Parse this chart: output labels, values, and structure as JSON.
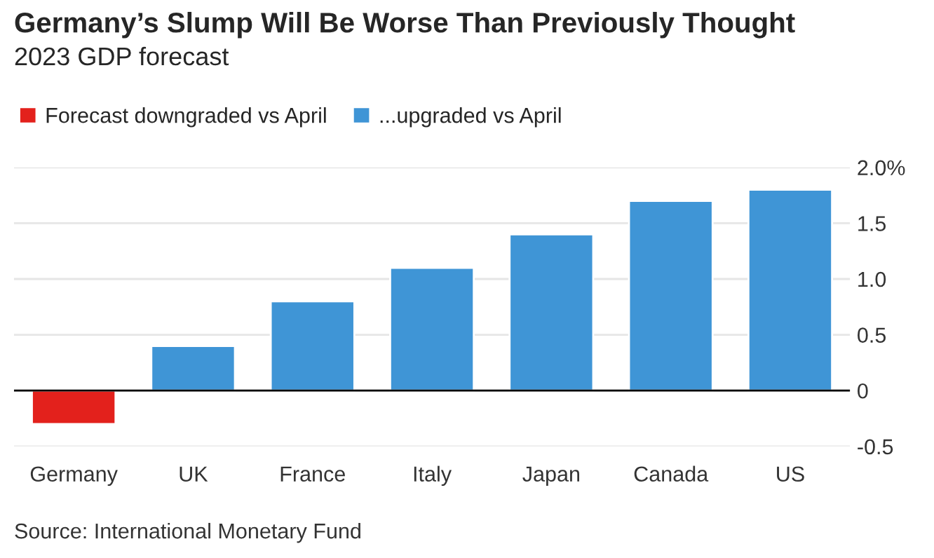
{
  "chart_data": {
    "type": "bar",
    "title": "Germany’s Slump Will Be Worse Than Previously Thought",
    "subtitle": "2023 GDP forecast",
    "categories": [
      "Germany",
      "UK",
      "France",
      "Italy",
      "Japan",
      "Canada",
      "US"
    ],
    "series": [
      {
        "name": "Forecast downgraded vs April",
        "color": "#e3211c",
        "values": [
          -0.3,
          null,
          null,
          null,
          null,
          null,
          null
        ]
      },
      {
        "name": "...upgraded vs April",
        "color": "#3f95d6",
        "values": [
          null,
          0.4,
          0.8,
          1.1,
          1.4,
          1.7,
          1.8
        ]
      }
    ],
    "ylim": [
      -0.5,
      2
    ],
    "yticks": [
      -0.5,
      0,
      0.5,
      {
        "value": 1,
        "label": "1.0"
      },
      1.5,
      {
        "value": 2,
        "label": "2.0%"
      }
    ],
    "grid": "y",
    "legend": "top left",
    "ref_lines": [
      {
        "axis": "y",
        "value": 0,
        "label": null,
        "color": "#000000"
      }
    ],
    "annotations": [
      "Source: International Monetary Fund"
    ]
  }
}
